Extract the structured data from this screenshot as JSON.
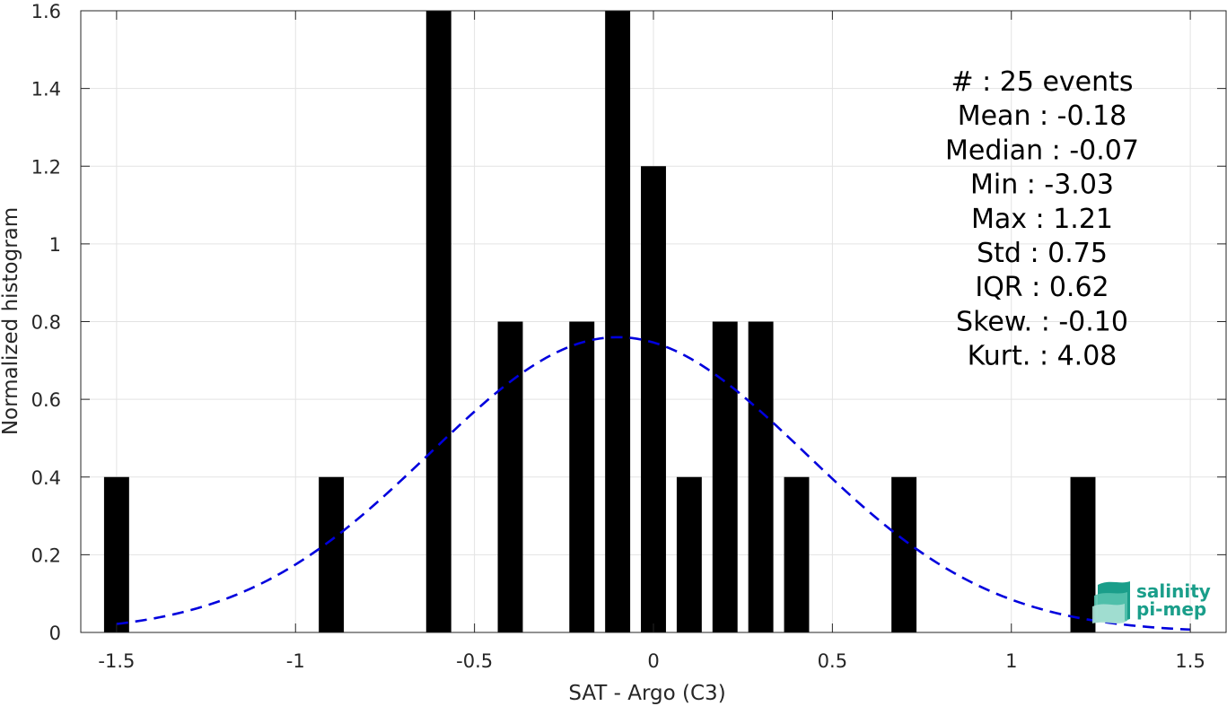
{
  "chart_data": {
    "type": "bar",
    "xlabel": "SAT - Argo (C3)",
    "ylabel": "Normalized histogram",
    "xlim": [
      -1.6,
      1.6
    ],
    "ylim": [
      0,
      1.6
    ],
    "xticks": [
      -1.5,
      -1,
      -0.5,
      0,
      0.5,
      1,
      1.5
    ],
    "xtick_labels": [
      "-1.5",
      "-1",
      "-0.5",
      "0",
      "0.5",
      "1",
      "1.5"
    ],
    "yticks": [
      0,
      0.2,
      0.4,
      0.6,
      0.8,
      1,
      1.2,
      1.4,
      1.6
    ],
    "ytick_labels": [
      "0",
      "0.2",
      "0.4",
      "0.6",
      "0.8",
      "1",
      "1.2",
      "1.4",
      "1.6"
    ],
    "grid": true,
    "bar_width": 0.07,
    "bars": [
      {
        "x": -1.5,
        "y": 0.4
      },
      {
        "x": -0.9,
        "y": 0.4
      },
      {
        "x": -0.6,
        "y": 1.6
      },
      {
        "x": -0.4,
        "y": 0.8
      },
      {
        "x": -0.2,
        "y": 0.8
      },
      {
        "x": -0.1,
        "y": 1.6
      },
      {
        "x": 0.0,
        "y": 1.2
      },
      {
        "x": 0.1,
        "y": 0.4
      },
      {
        "x": 0.2,
        "y": 0.8
      },
      {
        "x": 0.3,
        "y": 0.8
      },
      {
        "x": 0.4,
        "y": 0.4
      },
      {
        "x": 0.7,
        "y": 0.4
      },
      {
        "x": 1.2,
        "y": 0.4
      }
    ],
    "bar_color": "#000000",
    "fit": {
      "type": "gaussian",
      "style": "dashed",
      "color": "#0000dd",
      "mean": -0.1,
      "sigma": 0.525,
      "x_range": [
        -1.5,
        1.5
      ]
    },
    "stats_lines": [
      "#  : 25 events",
      "Mean : -0.18",
      "Median : -0.07",
      "Min : -3.03",
      "Max : 1.21",
      "Std : 0.75",
      "IQR : 0.62",
      "Skew. : -0.10",
      "Kurt. : 4.08"
    ]
  },
  "logo": {
    "line1": "salinity",
    "line2": "pi-mep",
    "color": "#1a9e8a"
  }
}
